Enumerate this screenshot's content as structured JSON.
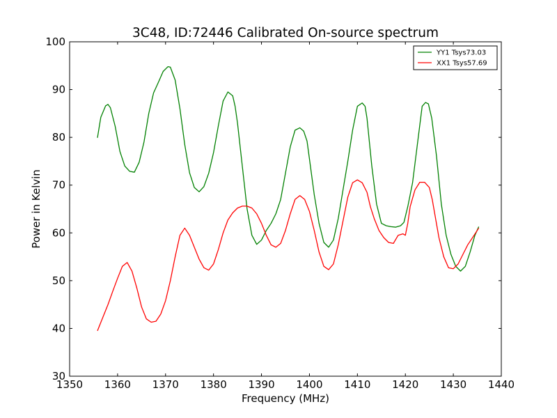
{
  "chart_data": {
    "type": "line",
    "title": "3C48, ID:72446 Calibrated On-source spectrum",
    "xlabel": "Frequency (MHz)",
    "ylabel": "Power in Kelvin",
    "xlim": [
      1350,
      1440
    ],
    "ylim": [
      30,
      100
    ],
    "xticks": [
      1350,
      1360,
      1370,
      1380,
      1390,
      1400,
      1410,
      1420,
      1430,
      1440
    ],
    "yticks": [
      30,
      40,
      50,
      60,
      70,
      80,
      90,
      100
    ],
    "grid": false,
    "legend_position": "top-right",
    "series": [
      {
        "name": "YY1 Tsys73.03",
        "color": "#008000",
        "x": [
          1355.8,
          1356.5,
          1357.5,
          1358.0,
          1358.5,
          1359.5,
          1360.5,
          1361.5,
          1362.5,
          1363.5,
          1364.5,
          1365.5,
          1366.5,
          1367.5,
          1368.5,
          1369.5,
          1370.5,
          1371.0,
          1372.0,
          1373.0,
          1374.0,
          1375.0,
          1376.0,
          1377.0,
          1378.0,
          1379.0,
          1380.0,
          1381.0,
          1382.0,
          1383.0,
          1384.0,
          1384.5,
          1385.0,
          1386.0,
          1387.0,
          1388.0,
          1389.0,
          1390.0,
          1391.0,
          1392.0,
          1393.0,
          1394.0,
          1395.0,
          1396.0,
          1397.0,
          1398.0,
          1398.8,
          1399.5,
          1400.0,
          1401.0,
          1402.0,
          1403.0,
          1404.0,
          1405.0,
          1406.0,
          1407.0,
          1408.0,
          1409.0,
          1410.0,
          1411.0,
          1411.6,
          1412.0,
          1413.0,
          1414.0,
          1415.0,
          1416.0,
          1417.0,
          1418.0,
          1419.0,
          1419.7,
          1420.5,
          1421.5,
          1422.5,
          1423.5,
          1424.2,
          1424.8,
          1425.5,
          1426.5,
          1427.5,
          1428.5,
          1429.5,
          1430.5,
          1431.5,
          1432.5,
          1433.5,
          1434.5,
          1435.3
        ],
        "values": [
          79.9,
          84.2,
          86.6,
          86.9,
          86.2,
          82.3,
          77.0,
          74.0,
          72.9,
          72.7,
          74.8,
          79.0,
          85.0,
          89.3,
          91.5,
          93.8,
          94.8,
          94.7,
          92.0,
          86.0,
          78.5,
          72.6,
          69.5,
          68.6,
          69.7,
          72.5,
          76.8,
          82.4,
          87.6,
          89.5,
          88.7,
          86.5,
          83.0,
          74.0,
          65.0,
          59.5,
          57.6,
          58.5,
          60.5,
          62.0,
          64.0,
          67.0,
          72.5,
          78.0,
          81.5,
          82.0,
          81.3,
          79.2,
          75.5,
          68.0,
          62.0,
          58.0,
          57.0,
          58.5,
          63.0,
          69.0,
          75.0,
          81.5,
          86.5,
          87.2,
          86.5,
          84.0,
          74.0,
          66.0,
          62.0,
          61.5,
          61.3,
          61.2,
          61.5,
          62.2,
          65.5,
          70.5,
          78.5,
          86.5,
          87.3,
          87.0,
          84.0,
          76.0,
          66.0,
          59.5,
          55.5,
          53.0,
          52.0,
          53.0,
          56.0,
          59.5,
          61.3
        ]
      },
      {
        "name": "XX1 Tsys57.69",
        "color": "#ff0000",
        "x": [
          1355.8,
          1357.0,
          1358.0,
          1359.0,
          1360.0,
          1361.0,
          1362.0,
          1363.0,
          1364.0,
          1365.0,
          1366.0,
          1367.0,
          1368.0,
          1369.0,
          1370.0,
          1371.0,
          1372.0,
          1373.0,
          1374.0,
          1375.0,
          1376.0,
          1377.0,
          1378.0,
          1379.0,
          1380.0,
          1381.0,
          1382.0,
          1383.0,
          1384.0,
          1385.0,
          1386.0,
          1387.0,
          1388.0,
          1389.0,
          1390.0,
          1391.0,
          1392.0,
          1393.0,
          1394.0,
          1395.0,
          1396.0,
          1397.0,
          1398.0,
          1399.0,
          1400.0,
          1401.0,
          1402.0,
          1403.0,
          1404.0,
          1405.0,
          1406.0,
          1407.0,
          1408.0,
          1409.0,
          1410.0,
          1411.0,
          1412.0,
          1412.7,
          1413.5,
          1414.5,
          1415.5,
          1416.5,
          1417.5,
          1418.5,
          1419.5,
          1420.0,
          1420.5,
          1421.0,
          1422.0,
          1423.0,
          1424.0,
          1425.0,
          1425.6,
          1426.3,
          1427.0,
          1428.0,
          1429.0,
          1430.0,
          1431.0,
          1432.0,
          1433.0,
          1434.0,
          1435.3
        ],
        "values": [
          39.5,
          42.5,
          45.0,
          47.8,
          50.5,
          53.0,
          53.8,
          52.0,
          48.5,
          44.5,
          42.0,
          41.3,
          41.5,
          43.0,
          45.8,
          50.0,
          55.0,
          59.5,
          61.0,
          59.5,
          57.0,
          54.5,
          52.7,
          52.2,
          53.5,
          56.5,
          60.0,
          62.7,
          64.2,
          65.2,
          65.6,
          65.6,
          65.2,
          64.0,
          62.0,
          59.5,
          57.5,
          57.0,
          57.8,
          60.5,
          64.0,
          67.0,
          67.8,
          67.0,
          64.5,
          60.5,
          56.0,
          53.0,
          52.3,
          53.5,
          57.5,
          62.5,
          67.5,
          70.5,
          71.1,
          70.5,
          68.5,
          65.5,
          63.0,
          60.5,
          59.0,
          58.0,
          57.8,
          59.5,
          59.8,
          59.5,
          62.0,
          65.5,
          69.0,
          70.6,
          70.6,
          69.5,
          67.0,
          63.0,
          59.0,
          55.0,
          52.7,
          52.5,
          53.5,
          55.5,
          57.5,
          59.0,
          61.0
        ]
      }
    ]
  }
}
